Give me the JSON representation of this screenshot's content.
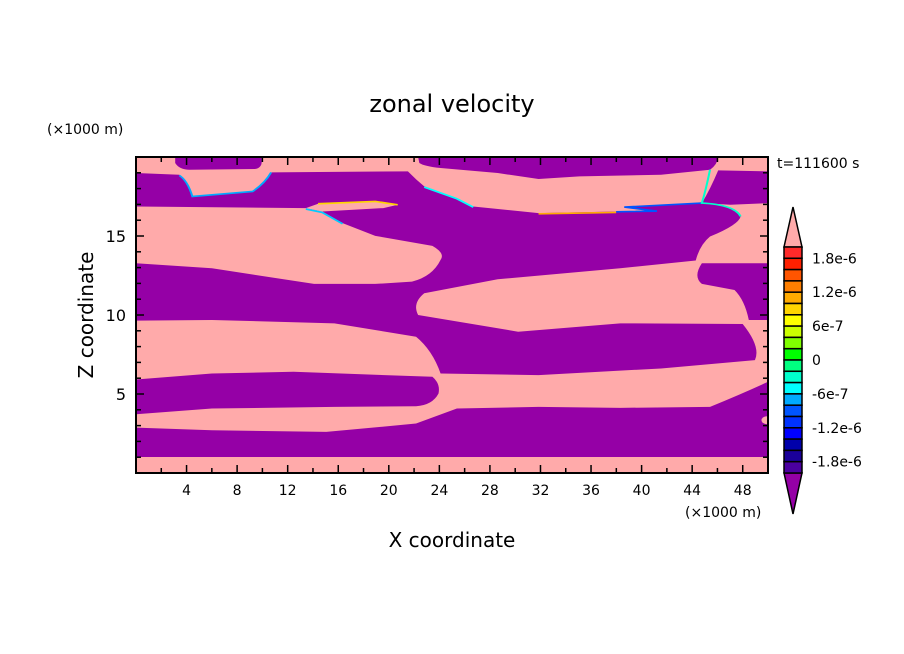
{
  "chart_data": {
    "type": "contour",
    "title": "zonal velocity",
    "xlabel": "X coordinate",
    "ylabel": "Z coordinate",
    "x_unit_label": "(×1000 m)",
    "y_unit_label": "(×1000 m)",
    "time_label": "t=111600 s",
    "xlim": [
      0,
      50
    ],
    "ylim": [
      0,
      20
    ],
    "xticks": [
      4,
      8,
      12,
      16,
      20,
      24,
      28,
      32,
      36,
      40,
      44,
      48
    ],
    "xtick_labels": [
      "4",
      "8",
      "12",
      "16",
      "20",
      "24",
      "28",
      "32",
      "36",
      "40",
      "44",
      "48"
    ],
    "yticks": [
      5,
      10,
      15
    ],
    "ytick_labels": [
      "5",
      "10",
      "15"
    ],
    "grid": false,
    "field_note_values": {
      "positive_saturated": 2e-06,
      "negative_saturated": -2e-06
    },
    "colorbar": {
      "levels": [
        2e-06,
        1.8e-06,
        1.6e-06,
        1.4e-06,
        1.2e-06,
        1e-06,
        8e-07,
        6e-07,
        4e-07,
        2e-07,
        0,
        -2e-07,
        -4e-07,
        -6e-07,
        -8e-07,
        -1e-06,
        -1.2e-06,
        -1.4e-06,
        -1.6e-06,
        -1.8e-06,
        -2e-06
      ],
      "colors": [
        "#ff2a2a",
        "#ff2000",
        "#ff5500",
        "#ff7f00",
        "#ffaa00",
        "#ffd400",
        "#ffff00",
        "#ccff00",
        "#80ff00",
        "#00ff00",
        "#00ff80",
        "#00ffcc",
        "#00ffff",
        "#00aaff",
        "#0055ff",
        "#0033ff",
        "#0000ff",
        "#0000aa",
        "#1a0099",
        "#4b00a0"
      ],
      "over_color": "#ffaaaa",
      "under_color": "#9500a6",
      "tick_values": [
        1.8e-06,
        1.2e-06,
        6e-07,
        0,
        -6e-07,
        -1.2e-06,
        -1.8e-06
      ],
      "tick_labels": [
        "1.8e-6",
        "1.2e-6",
        "6e-7",
        "0",
        "-6e-7",
        "-1.2e-6",
        "-1.8e-6"
      ]
    }
  }
}
